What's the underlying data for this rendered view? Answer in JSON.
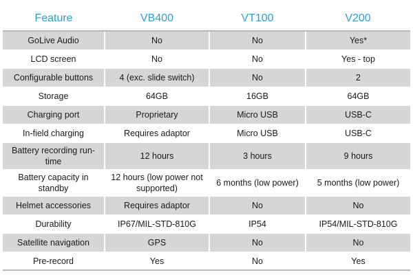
{
  "table": {
    "columns": [
      "Feature",
      "VB400",
      "VT100",
      "V200"
    ],
    "rows": [
      [
        "GoLive Audio",
        "No",
        "No",
        "Yes*"
      ],
      [
        "LCD screen",
        "No",
        "No",
        "Yes - top"
      ],
      [
        "Configurable buttons",
        "4 (exc. slide switch)",
        "No",
        "2"
      ],
      [
        "Storage",
        "64GB",
        "16GB",
        "64GB"
      ],
      [
        "Charging port",
        "Proprietary",
        "Micro USB",
        "USB-C"
      ],
      [
        "In-field charging",
        "Requires adaptor",
        "Micro USB",
        "USB-C"
      ],
      [
        "Battery recording run-time",
        "12 hours",
        "3 hours",
        "9 hours"
      ],
      [
        "Battery capacity in standby",
        "12 hours (low power not supported)",
        "6 months (low power)",
        "5 months (low power)"
      ],
      [
        "Helmet accessories",
        "Requires adaptor",
        "No",
        "No"
      ],
      [
        "Durability",
        "IP67/MIL-STD-810G",
        "IP54",
        "IP54/MIL-STD-810G"
      ],
      [
        "Satellite navigation",
        "GPS",
        "No",
        "No"
      ],
      [
        "Pre-record",
        "Yes",
        "No",
        "Yes"
      ]
    ]
  },
  "colors": {
    "header_text": "#2aa0d8",
    "shaded_row": "#d6d6d6",
    "rule": "#b9b9b9"
  }
}
